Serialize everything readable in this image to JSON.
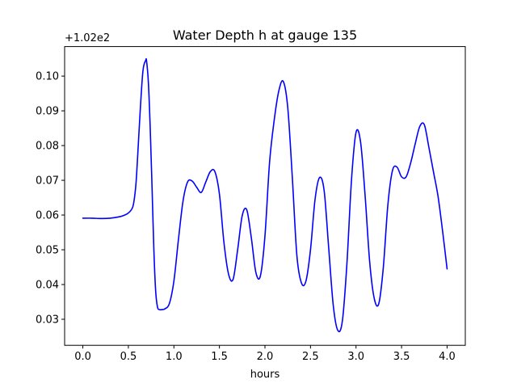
{
  "chart_data": {
    "type": "line",
    "title": "Water Depth h at gauge 135",
    "xlabel": "hours",
    "ylabel": "",
    "y_offset_label": "+1.02e2",
    "y_offset": 102,
    "xlim": [
      -0.2,
      4.2
    ],
    "ylim": [
      0.0225,
      0.1085
    ],
    "xticks": [
      0.0,
      0.5,
      1.0,
      1.5,
      2.0,
      2.5,
      3.0,
      3.5,
      4.0
    ],
    "xtick_labels": [
      "0.0",
      "0.5",
      "1.0",
      "1.5",
      "2.0",
      "2.5",
      "3.0",
      "3.5",
      "4.0"
    ],
    "yticks": [
      0.03,
      0.04,
      0.05,
      0.06,
      0.07,
      0.08,
      0.09,
      0.1
    ],
    "ytick_labels": [
      "0.03",
      "0.04",
      "0.05",
      "0.06",
      "0.07",
      "0.08",
      "0.09",
      "0.10"
    ],
    "grid": false,
    "colors": {
      "line": "#0000ff",
      "axes": "#000000",
      "background": "#ffffff"
    },
    "series": [
      {
        "x": [
          0.0,
          0.1,
          0.2,
          0.3,
          0.4,
          0.45,
          0.5,
          0.55,
          0.58,
          0.6,
          0.63,
          0.66,
          0.69,
          0.7,
          0.72,
          0.74,
          0.76,
          0.78,
          0.8,
          0.82,
          0.84,
          0.87,
          0.9,
          0.95,
          1.0,
          1.05,
          1.1,
          1.15,
          1.2,
          1.25,
          1.3,
          1.35,
          1.4,
          1.45,
          1.5,
          1.55,
          1.6,
          1.65,
          1.7,
          1.75,
          1.8,
          1.85,
          1.9,
          1.95,
          2.0,
          2.05,
          2.1,
          2.15,
          2.2,
          2.25,
          2.3,
          2.35,
          2.4,
          2.45,
          2.5,
          2.55,
          2.6,
          2.65,
          2.7,
          2.75,
          2.8,
          2.85,
          2.9,
          2.95,
          3.0,
          3.05,
          3.1,
          3.15,
          3.2,
          3.25,
          3.3,
          3.35,
          3.4,
          3.45,
          3.5,
          3.55,
          3.6,
          3.65,
          3.7,
          3.75,
          3.8,
          3.85,
          3.9,
          3.95,
          4.0
        ],
        "y": [
          0.0591,
          0.0591,
          0.059,
          0.0591,
          0.0595,
          0.0599,
          0.0606,
          0.0625,
          0.068,
          0.076,
          0.09,
          0.1015,
          0.1045,
          0.1043,
          0.098,
          0.085,
          0.068,
          0.05,
          0.038,
          0.0335,
          0.0328,
          0.0328,
          0.033,
          0.0345,
          0.041,
          0.053,
          0.064,
          0.0695,
          0.0698,
          0.068,
          0.0665,
          0.0695,
          0.0725,
          0.0725,
          0.066,
          0.052,
          0.043,
          0.0415,
          0.05,
          0.0598,
          0.0615,
          0.0535,
          0.0435,
          0.0425,
          0.054,
          0.075,
          0.087,
          0.0955,
          0.0985,
          0.091,
          0.071,
          0.0485,
          0.0405,
          0.041,
          0.05,
          0.0645,
          0.0708,
          0.067,
          0.0505,
          0.034,
          0.0268,
          0.0295,
          0.046,
          0.07,
          0.0838,
          0.081,
          0.0655,
          0.0465,
          0.036,
          0.0345,
          0.045,
          0.063,
          0.0728,
          0.0738,
          0.071,
          0.071,
          0.075,
          0.0805,
          0.0855,
          0.086,
          0.0795,
          0.0725,
          0.0655,
          0.0555,
          0.0445
        ]
      }
    ]
  }
}
